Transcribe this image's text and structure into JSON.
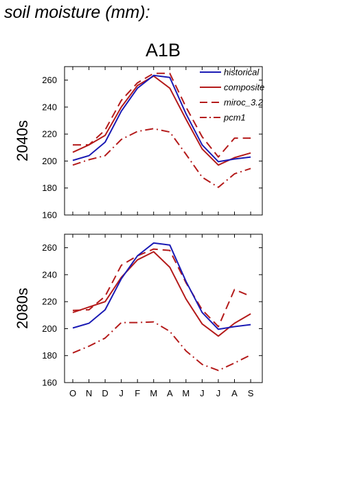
{
  "heading": "soil moisture (mm):",
  "scenario": "A1B",
  "colors": {
    "historical": "#1a1ab4",
    "models": "#b41a1a"
  },
  "chart_data": [
    {
      "type": "line",
      "panel_label": "2040s",
      "categories": [
        "O",
        "N",
        "D",
        "J",
        "F",
        "M",
        "A",
        "M",
        "J",
        "J",
        "A",
        "S"
      ],
      "ylim": [
        160,
        270
      ],
      "yticks": [
        160,
        180,
        200,
        220,
        240,
        260
      ],
      "grid": false,
      "legend": "top-right",
      "series": [
        {
          "name": "historical",
          "style": "solid",
          "color": "#1a1ab4",
          "values": [
            200.5,
            204,
            214,
            237,
            254,
            263.5,
            262,
            235,
            212,
            199.5,
            201.5,
            203
          ]
        },
        {
          "name": "composite",
          "style": "solid",
          "color": "#b41a1a",
          "values": [
            206.5,
            212,
            219,
            240,
            256,
            263,
            254,
            231,
            209,
            197,
            202.5,
            206
          ]
        },
        {
          "name": "miroc_3.2",
          "style": "dash",
          "color": "#b41a1a",
          "values": [
            212,
            212,
            223,
            245,
            258,
            265,
            265,
            240,
            218,
            203,
            217,
            217
          ]
        },
        {
          "name": "pcm1",
          "style": "dashdot",
          "color": "#b41a1a",
          "values": [
            197,
            201,
            204,
            216,
            222,
            224,
            221.5,
            205,
            188,
            180.5,
            190.5,
            194.5
          ]
        }
      ]
    },
    {
      "type": "line",
      "panel_label": "2080s",
      "categories": [
        "O",
        "N",
        "D",
        "J",
        "F",
        "M",
        "A",
        "M",
        "J",
        "J",
        "A",
        "S"
      ],
      "ylim": [
        160,
        270
      ],
      "yticks": [
        160,
        180,
        200,
        220,
        240,
        260
      ],
      "grid": false,
      "legend": "none",
      "series": [
        {
          "name": "historical",
          "style": "solid",
          "color": "#1a1ab4",
          "values": [
            200.5,
            204,
            214,
            237,
            254,
            263.5,
            262,
            235,
            212,
            199.5,
            201.5,
            203
          ]
        },
        {
          "name": "composite",
          "style": "solid",
          "color": "#b41a1a",
          "values": [
            212,
            216,
            220,
            238,
            251,
            257,
            245.5,
            222,
            203.5,
            194.5,
            204,
            211
          ]
        },
        {
          "name": "miroc_3.2",
          "style": "dash",
          "color": "#b41a1a",
          "values": [
            213.5,
            214,
            224,
            247,
            254,
            259,
            258,
            234,
            214,
            201.5,
            229,
            224
          ]
        },
        {
          "name": "pcm1",
          "style": "dashdot",
          "color": "#b41a1a",
          "values": [
            182,
            187,
            193,
            204.5,
            204.5,
            205,
            198,
            183.5,
            173.5,
            169,
            174.5,
            180.5
          ]
        }
      ]
    }
  ]
}
